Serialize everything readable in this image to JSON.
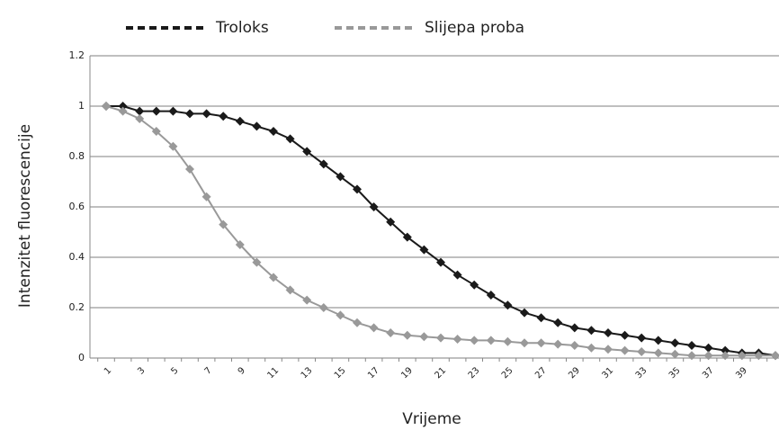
{
  "chart_data": {
    "type": "line",
    "xlabel": "Vrijeme",
    "ylabel": "Intenzitet fluorescencije",
    "categories": [
      1,
      null,
      3,
      null,
      5,
      null,
      7,
      null,
      9,
      null,
      11,
      null,
      13,
      null,
      15,
      null,
      17,
      null,
      19,
      null,
      21,
      null,
      23,
      null,
      25,
      null,
      27,
      null,
      29,
      null,
      31,
      null,
      33,
      null,
      35,
      null,
      37,
      null,
      39,
      null,
      null
    ],
    "series": [
      {
        "name": "Troloks",
        "color": "#1a1a1a",
        "values": [
          1.0,
          1.0,
          0.98,
          0.98,
          0.98,
          0.97,
          0.97,
          0.96,
          0.94,
          0.92,
          0.9,
          0.87,
          0.82,
          0.77,
          0.72,
          0.67,
          0.6,
          0.54,
          0.48,
          0.43,
          0.38,
          0.33,
          0.29,
          0.25,
          0.21,
          0.18,
          0.16,
          0.14,
          0.12,
          0.11,
          0.1,
          0.09,
          0.08,
          0.07,
          0.06,
          0.05,
          0.04,
          0.03,
          0.02,
          0.02,
          0.01
        ]
      },
      {
        "name": "Slijepa proba",
        "color": "#999999",
        "values": [
          1.0,
          0.98,
          0.95,
          0.9,
          0.84,
          0.75,
          0.64,
          0.53,
          0.45,
          0.38,
          0.32,
          0.27,
          0.23,
          0.2,
          0.17,
          0.14,
          0.12,
          0.1,
          0.09,
          0.085,
          0.08,
          0.075,
          0.07,
          0.07,
          0.065,
          0.06,
          0.06,
          0.055,
          0.05,
          0.04,
          0.035,
          0.03,
          0.025,
          0.02,
          0.015,
          0.01,
          0.01,
          0.01,
          0.01,
          0.01,
          0.01
        ]
      }
    ],
    "ylim": [
      0,
      1.2
    ],
    "yticks": [
      0,
      0.2,
      0.4,
      0.6,
      0.8,
      1,
      1.2
    ],
    "grid": true,
    "legend": "top"
  }
}
